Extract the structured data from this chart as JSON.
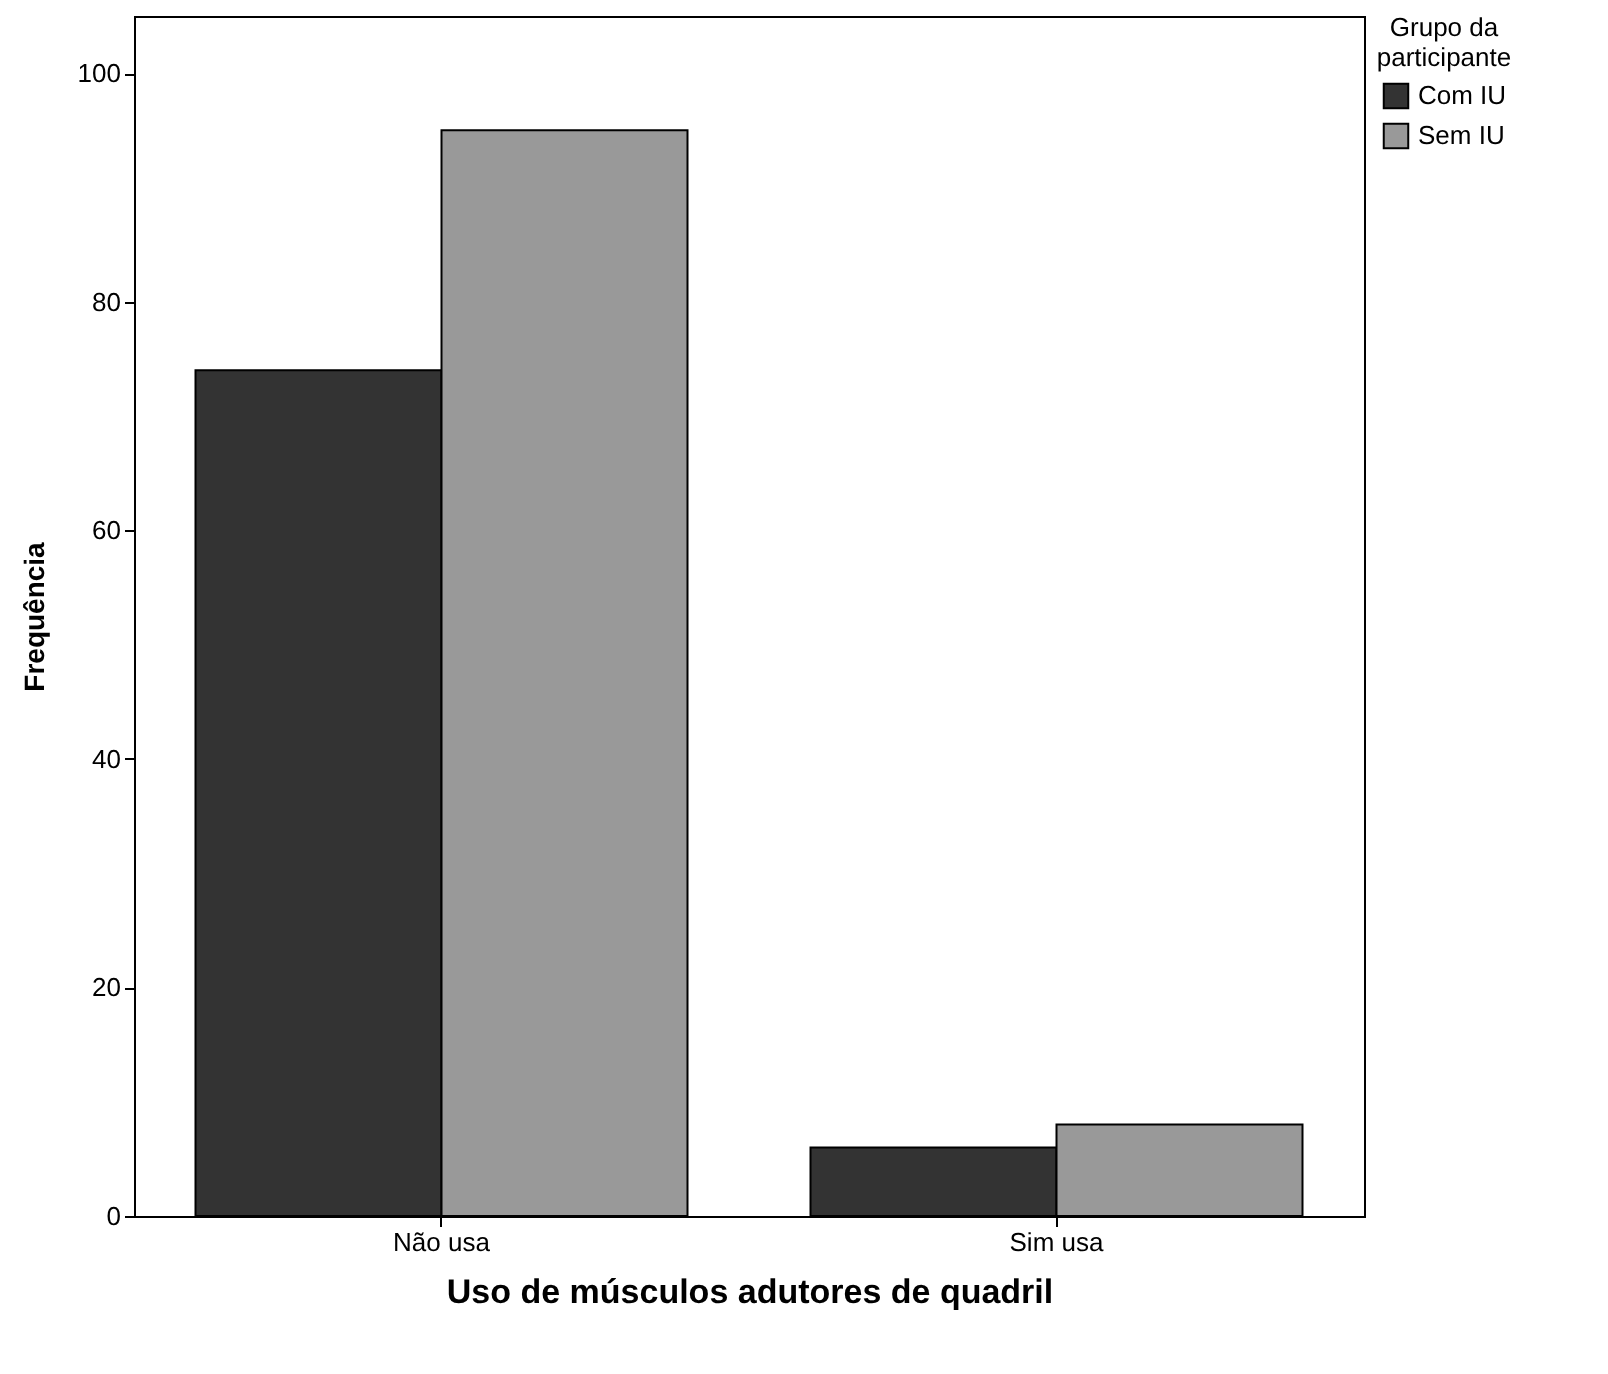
{
  "chart_data": {
    "type": "bar",
    "xlabel": "Uso de músculos adutores de quadril",
    "ylabel": "Frequência",
    "legend_title": "Grupo da participante",
    "categories": [
      "Não usa",
      "Sim usa"
    ],
    "series": [
      {
        "name": "Com IU",
        "color": "#333333",
        "values": [
          74,
          6
        ]
      },
      {
        "name": "Sem IU",
        "color": "#999999",
        "values": [
          95,
          8
        ]
      }
    ],
    "ylim": [
      0,
      105
    ],
    "yticks": [
      0,
      20,
      40,
      60,
      80,
      100
    ],
    "grid": false,
    "legend": "top right"
  }
}
